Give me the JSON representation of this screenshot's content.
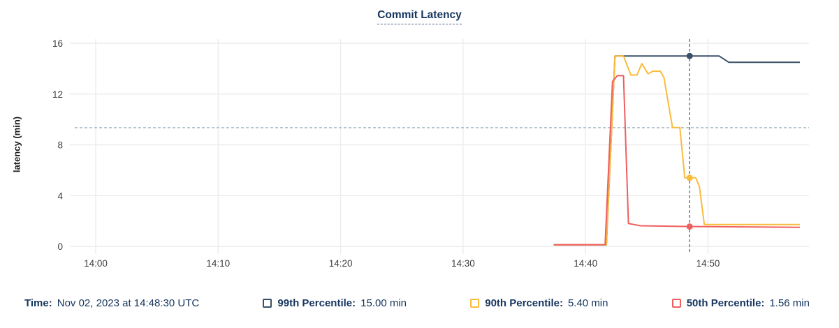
{
  "title": "Commit Latency",
  "colors": {
    "accent_text": "#16355e",
    "series_99th": "#3a5068",
    "series_90th": "#fbbb3b",
    "series_50th": "#ef5f5f",
    "grid": "#ececee",
    "axis_text": "#3d3d3d",
    "annotation_line": "#a9bbc6",
    "cursor_line": "#5a7184"
  },
  "chart_data": {
    "type": "line",
    "title": "Commit Latency",
    "xlabel": "",
    "ylabel": "latency (min)",
    "ylim": [
      0,
      16.4
    ],
    "y_ticks": [
      0,
      4,
      8,
      12,
      16
    ],
    "x_unit": "minutes after 14:00",
    "xlim": [
      -2.11,
      58.24
    ],
    "x_ticks": [
      {
        "t": 0,
        "label": "14:00"
      },
      {
        "t": 10,
        "label": "14:10"
      },
      {
        "t": 20,
        "label": "14:20"
      },
      {
        "t": 30,
        "label": "14:30"
      },
      {
        "t": 40,
        "label": "14:40"
      },
      {
        "t": 50,
        "label": "14:50"
      }
    ],
    "grid": true,
    "legend_position": "bottom",
    "annotation_hline": {
      "value": 9.35,
      "style": "dotted"
    },
    "cursor": {
      "t": 48.5,
      "time": "14:48:30",
      "style": "dashed"
    },
    "series": [
      {
        "name": "99th Percentile",
        "color": "#3a5068",
        "points": [
          [
            37.4,
            0.12
          ],
          [
            41.7,
            0.12
          ],
          [
            42.4,
            15.0
          ],
          [
            50.9,
            15.0
          ],
          [
            51.7,
            14.5
          ],
          [
            57.5,
            14.5
          ]
        ]
      },
      {
        "name": "90th Percentile",
        "color": "#fbbb3b",
        "points": [
          [
            37.4,
            0.12
          ],
          [
            41.7,
            0.12
          ],
          [
            42.4,
            15.0
          ],
          [
            43.1,
            15.0
          ],
          [
            43.7,
            13.5
          ],
          [
            44.2,
            13.5
          ],
          [
            44.6,
            14.4
          ],
          [
            45.1,
            13.6
          ],
          [
            45.5,
            13.8
          ],
          [
            46.1,
            13.8
          ],
          [
            46.4,
            13.3
          ],
          [
            47.1,
            9.35
          ],
          [
            47.7,
            9.35
          ],
          [
            48.1,
            5.4
          ],
          [
            49.0,
            5.4
          ],
          [
            49.3,
            4.7
          ],
          [
            49.7,
            1.72
          ],
          [
            57.5,
            1.72
          ]
        ]
      },
      {
        "name": "50th Percentile",
        "color": "#ef5f5f",
        "points": [
          [
            37.4,
            0.12
          ],
          [
            41.6,
            0.12
          ],
          [
            42.2,
            13.0
          ],
          [
            42.6,
            13.45
          ],
          [
            43.1,
            13.45
          ],
          [
            43.5,
            1.8
          ],
          [
            44.5,
            1.62
          ],
          [
            48.5,
            1.56
          ],
          [
            57.5,
            1.5
          ]
        ]
      }
    ],
    "markers": [
      {
        "series": "99th Percentile",
        "t": 48.5,
        "value": 15.0,
        "color": "#3a5068"
      },
      {
        "series": "90th Percentile",
        "t": 48.5,
        "value": 5.4,
        "color": "#fbbb3b"
      },
      {
        "series": "50th Percentile",
        "t": 48.5,
        "value": 1.56,
        "color": "#ef5f5f"
      }
    ]
  },
  "legend": {
    "time_label": "Time:",
    "time_value": "Nov 02, 2023 at 14:48:30 UTC",
    "items": [
      {
        "label": "99th Percentile:",
        "value": "15.00 min",
        "color": "#3a5068"
      },
      {
        "label": "90th Percentile:",
        "value": "5.40 min",
        "color": "#fbbb3b"
      },
      {
        "label": "50th Percentile:",
        "value": "1.56 min",
        "color": "#ef5f5f"
      }
    ]
  }
}
